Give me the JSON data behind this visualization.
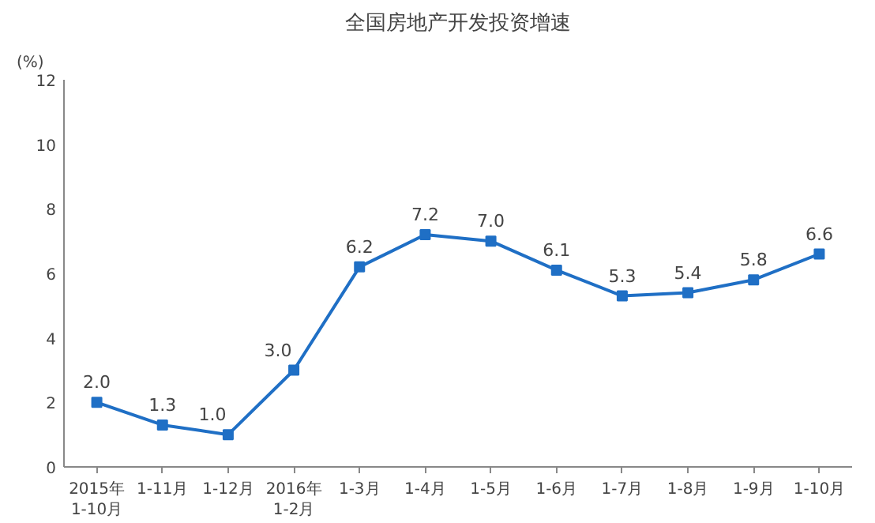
{
  "chart_data": {
    "type": "line",
    "title": "全国房地产开发投资增速",
    "ylabel": "(%)",
    "categories": [
      "2015年\n1-10月",
      "1-11月",
      "1-12月",
      "2016年\n1-2月",
      "1-3月",
      "1-4月",
      "1-5月",
      "1-6月",
      "1-7月",
      "1-8月",
      "1-9月",
      "1-10月"
    ],
    "series": [
      {
        "color": "#1f6fc5",
        "values": [
          2.0,
          1.3,
          1.0,
          3.0,
          6.2,
          7.2,
          7.0,
          6.1,
          5.3,
          5.4,
          5.8,
          6.6
        ],
        "value_labels": [
          "2.0",
          "1.3",
          "1.0",
          "3.0",
          "6.2",
          "7.2",
          "7.0",
          "6.1",
          "5.3",
          "5.4",
          "5.8",
          "6.6"
        ]
      }
    ],
    "ylim": [
      0,
      12
    ],
    "yticks": [
      0,
      2,
      4,
      6,
      8,
      10,
      12
    ],
    "marker": "square",
    "line_style": "solid",
    "grid": false
  }
}
